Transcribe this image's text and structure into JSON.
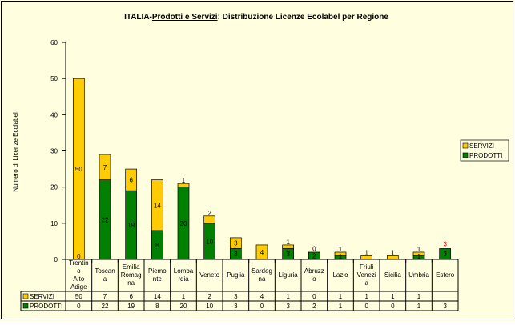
{
  "chart_data": {
    "type": "bar",
    "stacked": true,
    "title_prefix": "ITALIA-",
    "title_underlined": "Prodotti e Servizi",
    "title_suffix": ": Distribuzione Licenze Ecolabel per Regione",
    "ylabel": "Numero di Licenze Ecolabel",
    "ylim": [
      0,
      60
    ],
    "yticks": [
      0,
      10,
      20,
      30,
      40,
      50,
      60
    ],
    "grid": false,
    "legend": "right",
    "categories": [
      "Trentin o Alto Adige",
      "Toscan a",
      "Emilia Romag na",
      "Piemo nte",
      "Lomba rdia",
      "Veneto",
      "Puglia",
      "Sardeg na",
      "Liguria",
      "Abruzz o",
      "Lazio",
      "Friuli Venezi a",
      "Sicilia",
      "Umbria",
      "Estero"
    ],
    "series": [
      {
        "name": "PRODOTTI",
        "color": "#008000",
        "values": [
          0,
          22,
          19,
          8,
          20,
          10,
          3,
          0,
          3,
          2,
          1,
          0,
          0,
          1,
          3
        ]
      },
      {
        "name": "SERVIZI",
        "color": "#FFCC00",
        "values": [
          50,
          7,
          6,
          14,
          1,
          2,
          3,
          4,
          1,
          0,
          1,
          1,
          1,
          1,
          null
        ]
      }
    ],
    "estero_label": "3"
  }
}
